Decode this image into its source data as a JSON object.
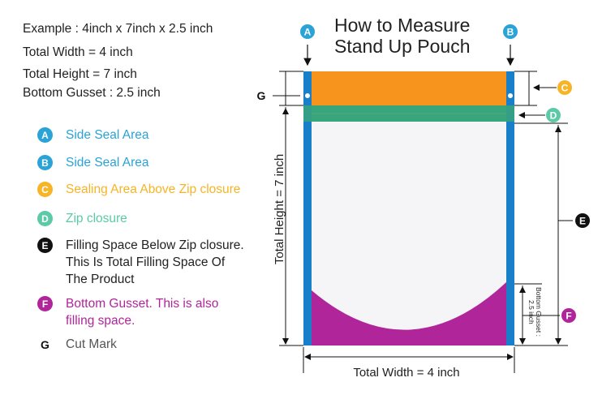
{
  "title": "How to Measure\nStand Up Pouch",
  "specs": {
    "example": "Example : 4inch x 7inch x 2.5 inch",
    "total_width": "Total Width = 4 inch",
    "total_height": "Total Height = 7 inch",
    "bottom_gusset": "Bottom Gusset : 2.5 inch"
  },
  "legend": [
    {
      "letter": "A",
      "text": "Side Seal Area",
      "color": "#2aa3d6"
    },
    {
      "letter": "B",
      "text": "Side Seal Area",
      "color": "#2aa3d6"
    },
    {
      "letter": "C",
      "text": "Sealing Area Above Zip closure",
      "color": "#f6b426"
    },
    {
      "letter": "D",
      "text": "Zip closure",
      "color": "#5ccaa6"
    },
    {
      "letter": "E",
      "text": "Filling Space Below Zip closure.\nThis Is Total Filling Space Of\nThe Product",
      "color": "#111111"
    },
    {
      "letter": "F",
      "text": "Bottom Gusset. This is also\nfilling space.",
      "color": "#b0259a"
    },
    {
      "letter": "G",
      "text": "Cut Mark",
      "color": "#222222"
    }
  ],
  "diagram": {
    "height_label": "Total Height = 7 inch",
    "width_label": "Total Width = 4 inch",
    "gusset_label_1": "Bottom Gusset :",
    "gusset_label_2": "2.5 inch",
    "colors": {
      "side_seal": "#1a7fc9",
      "top_seal": "#f7941d",
      "zip": "#3aa57a",
      "gusset": "#b0259a",
      "body": "#f5f5f7"
    }
  }
}
